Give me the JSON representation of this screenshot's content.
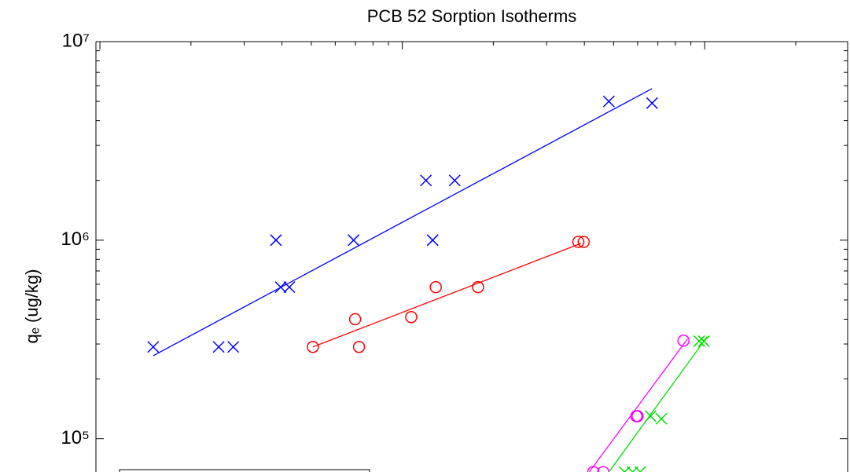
{
  "chart_data": {
    "type": "scatter",
    "title": "PCB 52 Sorption Isotherms",
    "ylabel": "qₑ (ug/kg)",
    "xscale": "log",
    "yscale": "log",
    "xlim": [
      0.97,
      297
    ],
    "ylim": [
      68000,
      10000000
    ],
    "xticks": [
      1,
      10,
      100
    ],
    "yticks": [
      {
        "value": 100000,
        "label": "10⁵"
      },
      {
        "value": 1000000,
        "label": "10⁶"
      },
      {
        "value": 10000000,
        "label": "10⁷"
      }
    ],
    "series": [
      {
        "color": "#0000ff",
        "marker": "x",
        "x": [
          1.5,
          2.47,
          2.76,
          3.82,
          3.96,
          4.23,
          6.9,
          11.97,
          12.6,
          14.9,
          48.2,
          67.0
        ],
        "values": [
          290000,
          290000,
          290000,
          1000000,
          580000,
          580000,
          1000000,
          2000000,
          1000000,
          2000000,
          5000000,
          4900000
        ],
        "fit": {
          "x": [
            1.5,
            67.0
          ],
          "values": [
            262000,
            5800000
          ]
        }
      },
      {
        "color": "#ff0000",
        "marker": "o",
        "x": [
          5.06,
          6.98,
          7.19,
          10.7,
          12.9,
          17.8,
          38.2,
          39.8
        ],
        "values": [
          290000,
          400000,
          290000,
          410000,
          580000,
          580000,
          980000,
          980000
        ],
        "fit": {
          "x": [
            5.06,
            39.0
          ],
          "values": [
            290000,
            964000
          ]
        }
      },
      {
        "color": "#ff00ff",
        "marker": "o",
        "x": [
          85.1,
          59.4,
          60.0,
          42.8,
          46.2
        ],
        "values": [
          312000,
          130000,
          130000,
          68000,
          68000
        ],
        "fit": {
          "x": [
            41.5,
            87.7
          ],
          "values": [
            68000,
            318000
          ]
        }
      },
      {
        "color": "#00dd00",
        "marker": "x",
        "x": [
          95.9,
          99.4,
          66.2,
          71.9,
          54.3,
          57.7,
          61.2
        ],
        "values": [
          310000,
          310000,
          130000,
          126000,
          68000,
          68000,
          68000
        ],
        "fit": {
          "x": [
            48.2,
            101.8
          ],
          "values": [
            68000,
            326000
          ]
        }
      }
    ]
  }
}
